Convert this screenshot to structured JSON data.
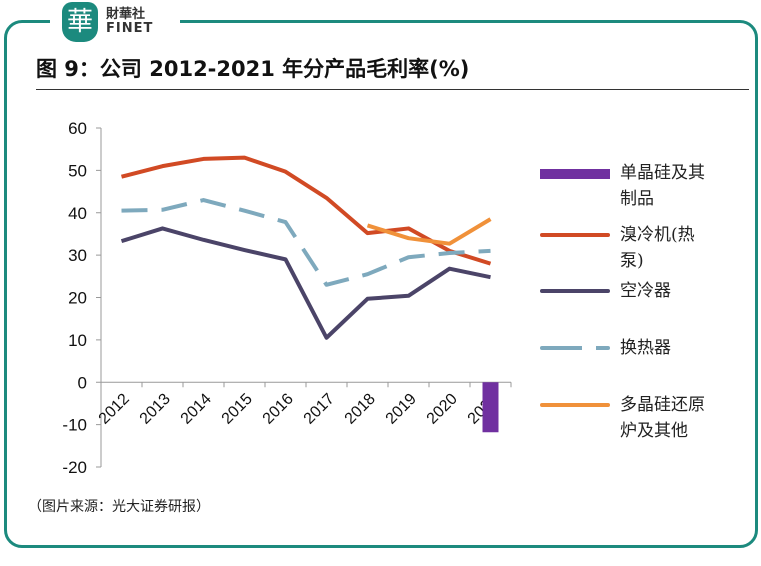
{
  "logo": {
    "glyph": "華",
    "name": "財華社",
    "sub": "FINET"
  },
  "title": "图 9：公司 2012-2021 年分产品毛利率(%)",
  "source": "（图片来源：光大证券研报）",
  "chart_data": {
    "type": "line",
    "title": "图 9：公司 2012-2021 年分产品毛利率(%)",
    "categories": [
      "2012",
      "2013",
      "2014",
      "2015",
      "2016",
      "2017",
      "2018",
      "2019",
      "2020",
      "2021"
    ],
    "ylim": [
      -20,
      60
    ],
    "yticks": [
      "60",
      "50",
      "40",
      "30",
      "20",
      "10",
      "0",
      "-10",
      "-20"
    ],
    "legend_position": "right",
    "series": [
      {
        "name": "单晶硅及其制品",
        "type": "bar",
        "color": "#7030a0",
        "values": [
          null,
          null,
          null,
          null,
          null,
          null,
          null,
          null,
          null,
          -11.8
        ]
      },
      {
        "name": "溴冷机(热泵)",
        "type": "line",
        "color": "#d14a24",
        "values": [
          48.5,
          51,
          52.7,
          53,
          49.7,
          43.5,
          35.2,
          36.3,
          31,
          28
        ]
      },
      {
        "name": "空冷器",
        "type": "line",
        "color": "#4b4468",
        "values": [
          33.3,
          36.3,
          33.6,
          31.2,
          29,
          10.5,
          19.7,
          20.4,
          26.8,
          24.8
        ]
      },
      {
        "name": "换热器",
        "type": "dashed",
        "color": "#7ea9bd",
        "values": [
          40.5,
          40.7,
          43,
          40.5,
          37.8,
          23,
          25.5,
          29.5,
          30.5,
          31
        ]
      },
      {
        "name": "多晶硅还原炉及其他",
        "type": "line",
        "color": "#f0913a",
        "values": [
          null,
          null,
          null,
          null,
          null,
          null,
          37,
          34,
          32.7,
          38.5
        ]
      }
    ]
  }
}
